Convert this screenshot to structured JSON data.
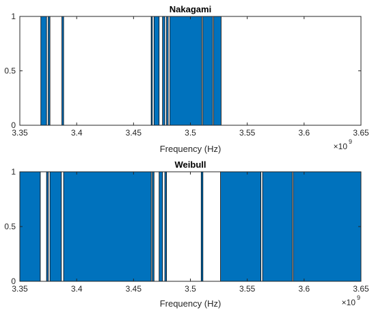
{
  "chart_data": [
    {
      "type": "bar",
      "title": "Nakagami",
      "xlabel": "Frequency (Hz)",
      "ylabel": "",
      "x_multiplier_label": "×10",
      "x_multiplier_exponent": "9",
      "xlim": [
        3350000000.0,
        3650000000.0
      ],
      "ylim": [
        0,
        1
      ],
      "xticks": [
        3350000000.0,
        3400000000.0,
        3450000000.0,
        3500000000.0,
        3550000000.0,
        3600000000.0,
        3650000000.0
      ],
      "xticklabels": [
        "3.35",
        "3.4",
        "3.45",
        "3.5",
        "3.55",
        "3.6",
        "3.65"
      ],
      "yticks": [
        0,
        0.5,
        1
      ],
      "yticklabels": [
        "0",
        "0.5",
        "1"
      ],
      "bar_color": "#0072BD",
      "edge_color": "#000000",
      "bands": [
        {
          "x0": 3368500000.0,
          "x1": 3373500000.0,
          "value": 1
        },
        {
          "x0": 3375000000.0,
          "x1": 3376500000.0,
          "value": 1
        },
        {
          "x0": 3387000000.0,
          "x1": 3388500000.0,
          "value": 1
        },
        {
          "x0": 3465500000.0,
          "x1": 3466500000.0,
          "value": 1
        },
        {
          "x0": 3468000000.0,
          "x1": 3472500000.0,
          "value": 1
        },
        {
          "x0": 3475500000.0,
          "x1": 3477500000.0,
          "value": 1
        },
        {
          "x0": 3479000000.0,
          "x1": 3480500000.0,
          "value": 1
        },
        {
          "x0": 3482000000.0,
          "x1": 3510000000.0,
          "value": 1
        },
        {
          "x0": 3511000000.0,
          "x1": 3519500000.0,
          "value": 1
        },
        {
          "x0": 3520500000.0,
          "x1": 3527000000.0,
          "value": 1
        }
      ]
    },
    {
      "type": "bar",
      "title": "Weibull",
      "xlabel": "Frequency (Hz)",
      "ylabel": "",
      "x_multiplier_label": "×10",
      "x_multiplier_exponent": "9",
      "xlim": [
        3350000000.0,
        3650000000.0
      ],
      "ylim": [
        0,
        1
      ],
      "xticks": [
        3350000000.0,
        3400000000.0,
        3450000000.0,
        3500000000.0,
        3550000000.0,
        3600000000.0,
        3650000000.0
      ],
      "xticklabels": [
        "3.35",
        "3.4",
        "3.45",
        "3.5",
        "3.55",
        "3.6",
        "3.65"
      ],
      "yticks": [
        0,
        0.5,
        1
      ],
      "yticklabels": [
        "0",
        "0.5",
        "1"
      ],
      "bar_color": "#0072BD",
      "edge_color": "#000000",
      "bands": [
        {
          "x0": 3350000000.0,
          "x1": 3368000000.0,
          "value": 1
        },
        {
          "x0": 3373500000.0,
          "x1": 3375000000.0,
          "value": 1
        },
        {
          "x0": 3376500000.0,
          "x1": 3386500000.0,
          "value": 1
        },
        {
          "x0": 3388500000.0,
          "x1": 3465500000.0,
          "value": 1
        },
        {
          "x0": 3466500000.0,
          "x1": 3468000000.0,
          "value": 1
        },
        {
          "x0": 3472500000.0,
          "x1": 3475500000.0,
          "value": 1
        },
        {
          "x0": 3477500000.0,
          "x1": 3479000000.0,
          "value": 1
        },
        {
          "x0": 3509500000.0,
          "x1": 3511000000.0,
          "value": 1
        },
        {
          "x0": 3526500000.0,
          "x1": 3562000000.0,
          "value": 1
        },
        {
          "x0": 3563500000.0,
          "x1": 3589500000.0,
          "value": 1
        },
        {
          "x0": 3590500000.0,
          "x1": 3650000000.0,
          "value": 1
        }
      ]
    }
  ]
}
